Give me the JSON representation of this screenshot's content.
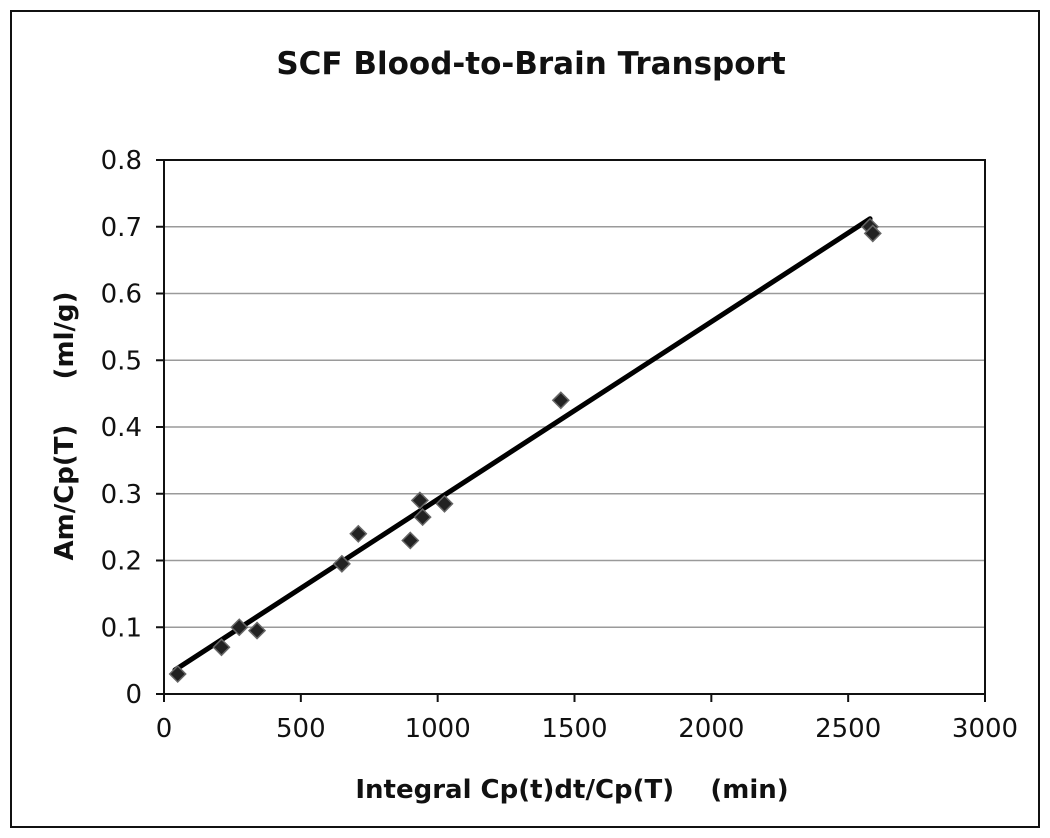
{
  "chart_data": {
    "type": "scatter",
    "title": "SCF Blood-to-Brain Transport",
    "xlabel": "Integral Cp(t)dt/Cp(T)    (min)",
    "ylabel": "Am/Cp(T)     (ml/g)",
    "xlim": [
      0,
      3000
    ],
    "ylim": [
      0,
      0.8
    ],
    "x_ticks": [
      "0",
      "500",
      "1000",
      "1500",
      "2000",
      "2500",
      "3000"
    ],
    "y_ticks": [
      "0",
      "0.1",
      "0.2",
      "0.3",
      "0.4",
      "0.5",
      "0.6",
      "0.7",
      "0.8"
    ],
    "grid": "horizontal",
    "legend": "none",
    "series": [
      {
        "marker": "diamond",
        "color": "#222222",
        "points": [
          {
            "x": 50,
            "y": 0.03
          },
          {
            "x": 210,
            "y": 0.07
          },
          {
            "x": 275,
            "y": 0.1
          },
          {
            "x": 340,
            "y": 0.095
          },
          {
            "x": 650,
            "y": 0.195
          },
          {
            "x": 710,
            "y": 0.24
          },
          {
            "x": 900,
            "y": 0.23
          },
          {
            "x": 935,
            "y": 0.29
          },
          {
            "x": 945,
            "y": 0.265
          },
          {
            "x": 1025,
            "y": 0.285
          },
          {
            "x": 1450,
            "y": 0.44
          },
          {
            "x": 2580,
            "y": 0.7
          },
          {
            "x": 2590,
            "y": 0.69
          }
        ]
      }
    ],
    "trendline": {
      "type": "linear",
      "color": "#000000",
      "from": {
        "x": 40,
        "y": 0.036
      },
      "to": {
        "x": 2580,
        "y": 0.712
      }
    }
  }
}
